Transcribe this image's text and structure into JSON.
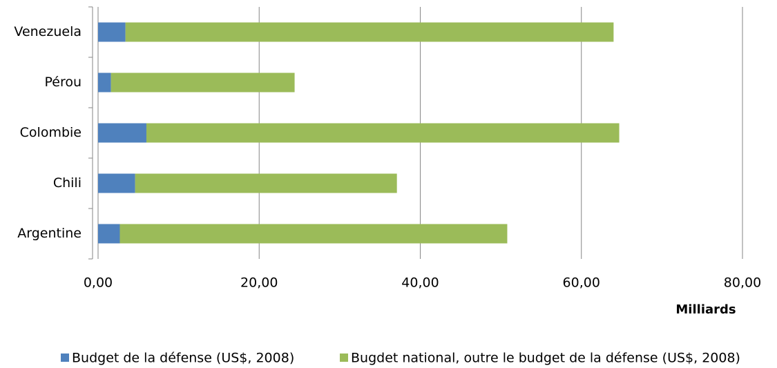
{
  "chart_data": {
    "type": "stacked_barh",
    "categories": [
      "Venezuela",
      "Pérou",
      "Colombie",
      "Chili",
      "Argentine"
    ],
    "series": [
      {
        "name": "Budget de la défense (US$, 2008)",
        "color": "#4f81bd",
        "values": [
          3.4,
          1.6,
          6.0,
          4.6,
          2.7
        ]
      },
      {
        "name": "Bugdet national, outre le budget de la défense (US$, 2008)",
        "color": "#9bbb59",
        "values": [
          60.6,
          22.8,
          58.7,
          32.5,
          48.1
        ]
      }
    ],
    "xlabel": "Milliards",
    "xlim": [
      0,
      80
    ],
    "xticks": [
      {
        "value": 0,
        "label": "0,00"
      },
      {
        "value": 20,
        "label": "20,00"
      },
      {
        "value": 40,
        "label": "40,00"
      },
      {
        "value": 60,
        "label": "60,00"
      },
      {
        "value": 80,
        "label": "80,00"
      }
    ],
    "grid": true,
    "legend": "bottom"
  }
}
